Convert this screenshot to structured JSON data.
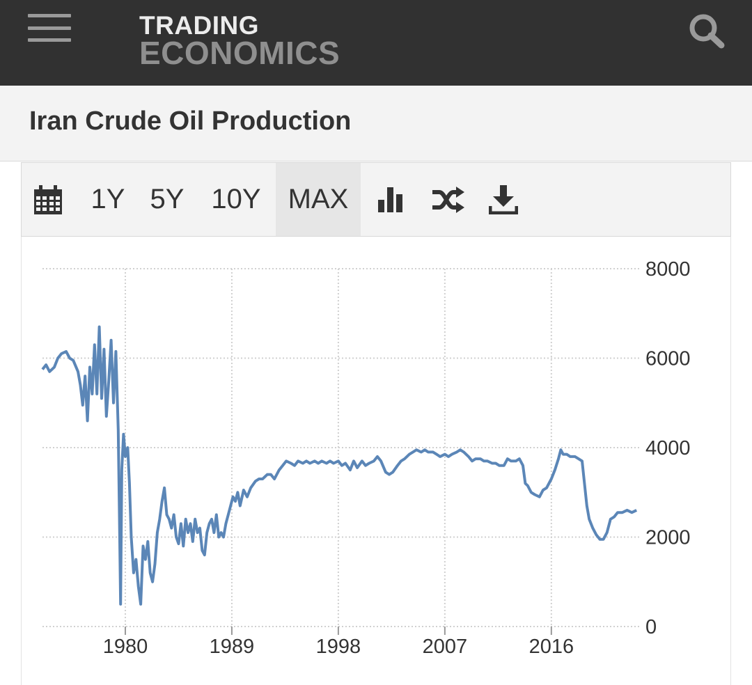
{
  "header": {
    "menu_icon": "hamburger-menu-icon",
    "logo_line1": "TRADING",
    "logo_line2": "ECONOMICS",
    "search_icon": "search-icon"
  },
  "page": {
    "title": "Iran Crude Oil Production"
  },
  "toolbar": {
    "calendar_icon": "calendar-icon",
    "ranges": [
      "1Y",
      "5Y",
      "10Y",
      "MAX"
    ],
    "selected_range": "MAX",
    "chart_type_icon": "bar-chart-icon",
    "compare_icon": "shuffle-icon",
    "download_icon": "download-icon"
  },
  "colors": {
    "header_bg": "#313131",
    "line": "#5b86b7",
    "grid": "#d0d0d0"
  },
  "chart_data": {
    "type": "line",
    "title": "",
    "xlabel": "",
    "ylabel": "",
    "x_ticks": [
      "1980",
      "1989",
      "1998",
      "2007",
      "2016"
    ],
    "y_ticks": [
      "0",
      "2000",
      "4000",
      "6000",
      "8000"
    ],
    "ylim": [
      0,
      8000
    ],
    "xlim": [
      1973.0,
      2023.6
    ],
    "grid": true,
    "legend": "none",
    "series": [
      {
        "values": [
          [
            1973.0,
            5750
          ],
          [
            1973.3,
            5850
          ],
          [
            1973.6,
            5700
          ],
          [
            1974.0,
            5800
          ],
          [
            1974.3,
            6000
          ],
          [
            1974.6,
            6100
          ],
          [
            1975.0,
            6150
          ],
          [
            1975.3,
            6000
          ],
          [
            1975.6,
            5950
          ],
          [
            1976.0,
            5700
          ],
          [
            1976.2,
            5400
          ],
          [
            1976.4,
            4950
          ],
          [
            1976.6,
            5600
          ],
          [
            1976.8,
            4600
          ],
          [
            1977.0,
            5800
          ],
          [
            1977.2,
            5200
          ],
          [
            1977.4,
            6300
          ],
          [
            1977.6,
            5200
          ],
          [
            1977.8,
            6700
          ],
          [
            1978.0,
            5100
          ],
          [
            1978.2,
            6200
          ],
          [
            1978.4,
            4700
          ],
          [
            1978.6,
            5500
          ],
          [
            1978.8,
            6400
          ],
          [
            1979.0,
            5000
          ],
          [
            1979.2,
            6150
          ],
          [
            1979.4,
            4400
          ],
          [
            1979.5,
            2500
          ],
          [
            1979.6,
            500
          ],
          [
            1979.7,
            3500
          ],
          [
            1979.85,
            4300
          ],
          [
            1980.0,
            3800
          ],
          [
            1980.2,
            4000
          ],
          [
            1980.35,
            3200
          ],
          [
            1980.5,
            2000
          ],
          [
            1980.7,
            1200
          ],
          [
            1980.9,
            1500
          ],
          [
            1981.1,
            900
          ],
          [
            1981.3,
            500
          ],
          [
            1981.5,
            1800
          ],
          [
            1981.7,
            1500
          ],
          [
            1981.9,
            1900
          ],
          [
            1982.1,
            1200
          ],
          [
            1982.3,
            1000
          ],
          [
            1982.5,
            1400
          ],
          [
            1982.7,
            2100
          ],
          [
            1982.9,
            2400
          ],
          [
            1983.1,
            2800
          ],
          [
            1983.3,
            3100
          ],
          [
            1983.5,
            2500
          ],
          [
            1983.7,
            2400
          ],
          [
            1983.9,
            2200
          ],
          [
            1984.1,
            2500
          ],
          [
            1984.3,
            2000
          ],
          [
            1984.5,
            1850
          ],
          [
            1984.7,
            2300
          ],
          [
            1984.9,
            1800
          ],
          [
            1985.1,
            2400
          ],
          [
            1985.3,
            2100
          ],
          [
            1985.5,
            2300
          ],
          [
            1985.7,
            1900
          ],
          [
            1985.9,
            2400
          ],
          [
            1986.1,
            2100
          ],
          [
            1986.3,
            2200
          ],
          [
            1986.5,
            1700
          ],
          [
            1986.7,
            1600
          ],
          [
            1986.9,
            2100
          ],
          [
            1987.1,
            2300
          ],
          [
            1987.3,
            2400
          ],
          [
            1987.5,
            2100
          ],
          [
            1987.7,
            2500
          ],
          [
            1987.9,
            2000
          ],
          [
            1988.1,
            2100
          ],
          [
            1988.3,
            2000
          ],
          [
            1988.5,
            2300
          ],
          [
            1988.7,
            2500
          ],
          [
            1988.9,
            2700
          ],
          [
            1989.1,
            2900
          ],
          [
            1989.3,
            2800
          ],
          [
            1989.5,
            3000
          ],
          [
            1989.7,
            2700
          ],
          [
            1990.0,
            3050
          ],
          [
            1990.3,
            2900
          ],
          [
            1990.6,
            3100
          ],
          [
            1991.0,
            3250
          ],
          [
            1991.3,
            3300
          ],
          [
            1991.6,
            3300
          ],
          [
            1992.0,
            3400
          ],
          [
            1992.3,
            3400
          ],
          [
            1992.6,
            3300
          ],
          [
            1993.0,
            3500
          ],
          [
            1993.3,
            3600
          ],
          [
            1993.6,
            3700
          ],
          [
            1994.0,
            3650
          ],
          [
            1994.3,
            3600
          ],
          [
            1994.6,
            3700
          ],
          [
            1995.0,
            3650
          ],
          [
            1995.3,
            3700
          ],
          [
            1995.6,
            3650
          ],
          [
            1996.0,
            3700
          ],
          [
            1996.3,
            3650
          ],
          [
            1996.6,
            3700
          ],
          [
            1997.0,
            3650
          ],
          [
            1997.3,
            3700
          ],
          [
            1997.6,
            3650
          ],
          [
            1998.0,
            3700
          ],
          [
            1998.3,
            3600
          ],
          [
            1998.6,
            3650
          ],
          [
            1999.0,
            3500
          ],
          [
            1999.3,
            3700
          ],
          [
            1999.6,
            3550
          ],
          [
            2000.0,
            3700
          ],
          [
            2000.3,
            3600
          ],
          [
            2000.6,
            3650
          ],
          [
            2001.0,
            3700
          ],
          [
            2001.3,
            3800
          ],
          [
            2001.6,
            3700
          ],
          [
            2002.0,
            3450
          ],
          [
            2002.3,
            3400
          ],
          [
            2002.6,
            3450
          ],
          [
            2003.0,
            3600
          ],
          [
            2003.3,
            3700
          ],
          [
            2003.6,
            3750
          ],
          [
            2004.0,
            3850
          ],
          [
            2004.3,
            3900
          ],
          [
            2004.6,
            3950
          ],
          [
            2005.0,
            3900
          ],
          [
            2005.3,
            3950
          ],
          [
            2005.6,
            3900
          ],
          [
            2006.0,
            3900
          ],
          [
            2006.3,
            3850
          ],
          [
            2006.6,
            3800
          ],
          [
            2007.0,
            3850
          ],
          [
            2007.3,
            3800
          ],
          [
            2007.6,
            3850
          ],
          [
            2008.0,
            3900
          ],
          [
            2008.3,
            3950
          ],
          [
            2008.6,
            3900
          ],
          [
            2009.0,
            3800
          ],
          [
            2009.3,
            3700
          ],
          [
            2009.6,
            3750
          ],
          [
            2010.0,
            3750
          ],
          [
            2010.3,
            3700
          ],
          [
            2010.6,
            3700
          ],
          [
            2011.0,
            3650
          ],
          [
            2011.3,
            3650
          ],
          [
            2011.6,
            3600
          ],
          [
            2012.0,
            3600
          ],
          [
            2012.3,
            3750
          ],
          [
            2012.6,
            3700
          ],
          [
            2013.0,
            3700
          ],
          [
            2013.3,
            3750
          ],
          [
            2013.6,
            3600
          ],
          [
            2013.8,
            3200
          ],
          [
            2014.0,
            3150
          ],
          [
            2014.3,
            3000
          ],
          [
            2014.6,
            2950
          ],
          [
            2015.0,
            2900
          ],
          [
            2015.3,
            3050
          ],
          [
            2015.6,
            3100
          ],
          [
            2016.0,
            3300
          ],
          [
            2016.3,
            3500
          ],
          [
            2016.6,
            3750
          ],
          [
            2016.8,
            3950
          ],
          [
            2017.0,
            3850
          ],
          [
            2017.3,
            3850
          ],
          [
            2017.6,
            3800
          ],
          [
            2018.0,
            3800
          ],
          [
            2018.3,
            3750
          ],
          [
            2018.6,
            3700
          ],
          [
            2018.8,
            3200
          ],
          [
            2019.0,
            2700
          ],
          [
            2019.2,
            2400
          ],
          [
            2019.5,
            2200
          ],
          [
            2019.8,
            2050
          ],
          [
            2020.1,
            1950
          ],
          [
            2020.4,
            1950
          ],
          [
            2020.7,
            2100
          ],
          [
            2021.0,
            2400
          ],
          [
            2021.3,
            2450
          ],
          [
            2021.6,
            2550
          ],
          [
            2022.0,
            2550
          ],
          [
            2022.4,
            2600
          ],
          [
            2022.8,
            2550
          ],
          [
            2023.2,
            2600
          ]
        ]
      }
    ]
  }
}
